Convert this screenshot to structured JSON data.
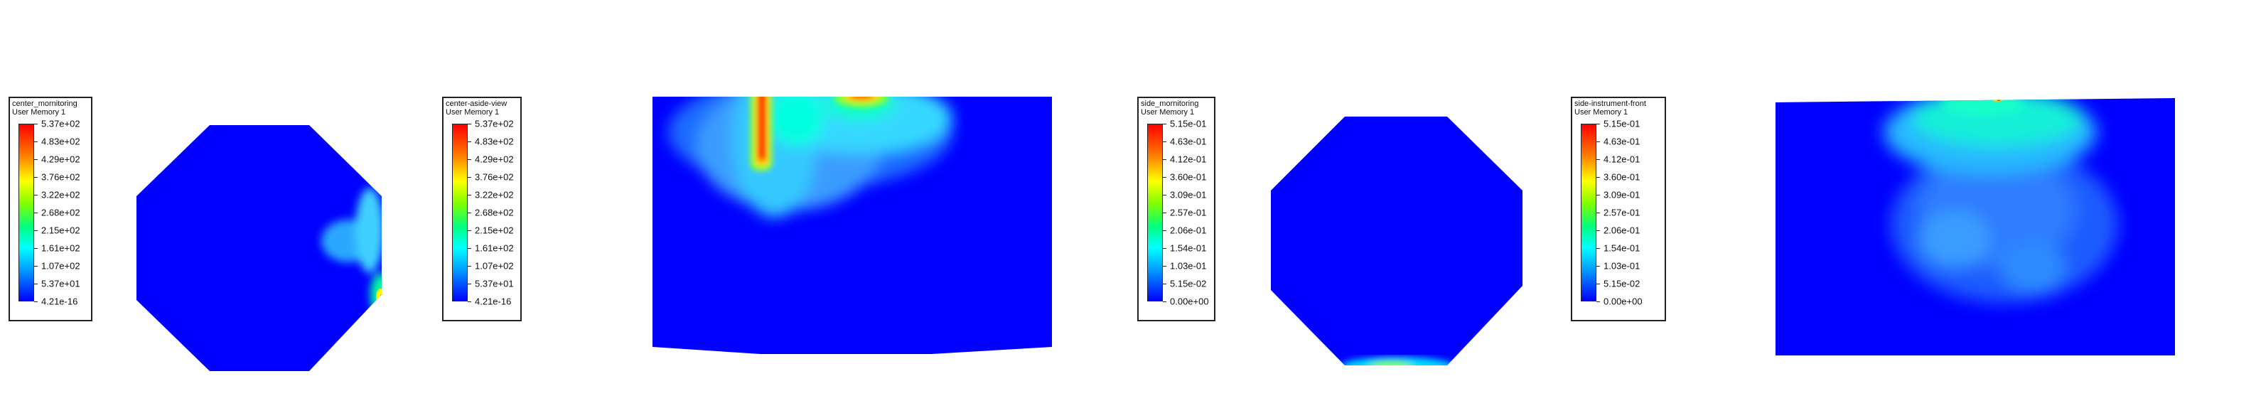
{
  "legends": [
    {
      "title1": "center_mornitoring",
      "title2": "User Memory 1",
      "labels": [
        "5.37e+02",
        "4.83e+02",
        "4.29e+02",
        "3.76e+02",
        "3.22e+02",
        "2.68e+02",
        "2.15e+02",
        "1.61e+02",
        "1.07e+02",
        "5.37e+01",
        "4.21e-16"
      ]
    },
    {
      "title1": "center-aside-view",
      "title2": "User Memory 1",
      "labels": [
        "5.37e+02",
        "4.83e+02",
        "4.29e+02",
        "3.76e+02",
        "3.22e+02",
        "2.68e+02",
        "2.15e+02",
        "1.61e+02",
        "1.07e+02",
        "5.37e+01",
        "4.21e-16"
      ]
    },
    {
      "title1": "side_mornitoring",
      "title2": "User Memory 1",
      "labels": [
        "5.15e-01",
        "4.63e-01",
        "4.12e-01",
        "3.60e-01",
        "3.09e-01",
        "2.57e-01",
        "2.06e-01",
        "1.54e-01",
        "1.03e-01",
        "5.15e-02",
        "0.00e+00"
      ]
    },
    {
      "title1": "side-instrument-front",
      "title2": "User Memory 1",
      "labels": [
        "5.15e-01",
        "4.63e-01",
        "4.12e-01",
        "3.60e-01",
        "3.09e-01",
        "2.57e-01",
        "2.06e-01",
        "1.54e-01",
        "1.03e-01",
        "5.15e-02",
        "0.00e+00"
      ]
    }
  ],
  "colors": {
    "background": "#ffffff",
    "field_base": "#0000ff",
    "scale": [
      "#ff0000",
      "#ff7f00",
      "#ffff00",
      "#7fff00",
      "#00ff7f",
      "#00ffff",
      "#0000ff"
    ]
  }
}
